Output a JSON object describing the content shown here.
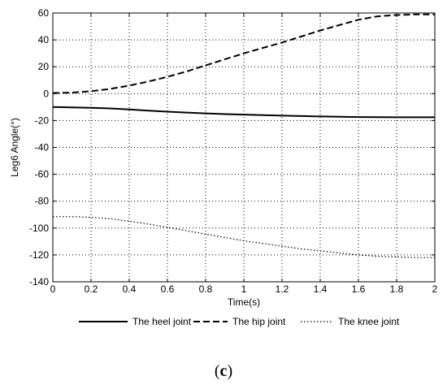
{
  "panel_label": {
    "open": "(",
    "letter": "c",
    "close": ")"
  },
  "chart_data": {
    "type": "line",
    "xlabel": "Time(s)",
    "ylabel": "Leg6 Angle(°)",
    "xlim": [
      0,
      2
    ],
    "ylim": [
      -140,
      60
    ],
    "x_ticks": [
      0,
      0.2,
      0.4,
      0.6,
      0.8,
      1,
      1.2,
      1.4,
      1.6,
      1.8,
      2
    ],
    "y_ticks": [
      -140,
      -120,
      -100,
      -80,
      -60,
      -40,
      -20,
      0,
      20,
      40,
      60
    ],
    "grid": true,
    "legend_position": "bottom",
    "series": [
      {
        "name": "The heel joint",
        "style": "solid",
        "x": [
          0,
          0.1,
          0.2,
          0.3,
          0.4,
          0.5,
          0.6,
          0.7,
          0.8,
          0.9,
          1.0,
          1.1,
          1.2,
          1.3,
          1.4,
          1.5,
          1.6,
          1.7,
          1.8,
          1.9,
          2.0
        ],
        "y": [
          -10,
          -10.2,
          -10.5,
          -11,
          -11.8,
          -12.6,
          -13.4,
          -14.1,
          -14.7,
          -15.2,
          -15.6,
          -16,
          -16.4,
          -16.7,
          -17,
          -17.2,
          -17.4,
          -17.5,
          -17.6,
          -17.6,
          -17.6
        ]
      },
      {
        "name": "The hip joint",
        "style": "dashed",
        "x": [
          0,
          0.1,
          0.2,
          0.3,
          0.4,
          0.5,
          0.6,
          0.7,
          0.8,
          0.9,
          1.0,
          1.1,
          1.2,
          1.3,
          1.4,
          1.5,
          1.6,
          1.7,
          1.8,
          1.9,
          2.0
        ],
        "y": [
          0.5,
          0.8,
          1.8,
          3.5,
          6,
          9,
          12.5,
          16.5,
          21,
          25.5,
          30,
          34,
          38,
          42.5,
          47,
          51,
          55,
          57.5,
          58.5,
          59,
          59
        ]
      },
      {
        "name": "The knee joint",
        "style": "dotted",
        "x": [
          0,
          0.1,
          0.2,
          0.3,
          0.4,
          0.5,
          0.6,
          0.7,
          0.8,
          0.9,
          1.0,
          1.1,
          1.2,
          1.3,
          1.4,
          1.5,
          1.6,
          1.7,
          1.8,
          1.9,
          2.0
        ],
        "y": [
          -91.5,
          -91.5,
          -92,
          -93,
          -95,
          -97,
          -99.5,
          -102,
          -104.5,
          -107,
          -109.5,
          -111.5,
          -113.5,
          -115.5,
          -117,
          -118.5,
          -120,
          -121,
          -121.5,
          -122,
          -122
        ]
      }
    ]
  }
}
